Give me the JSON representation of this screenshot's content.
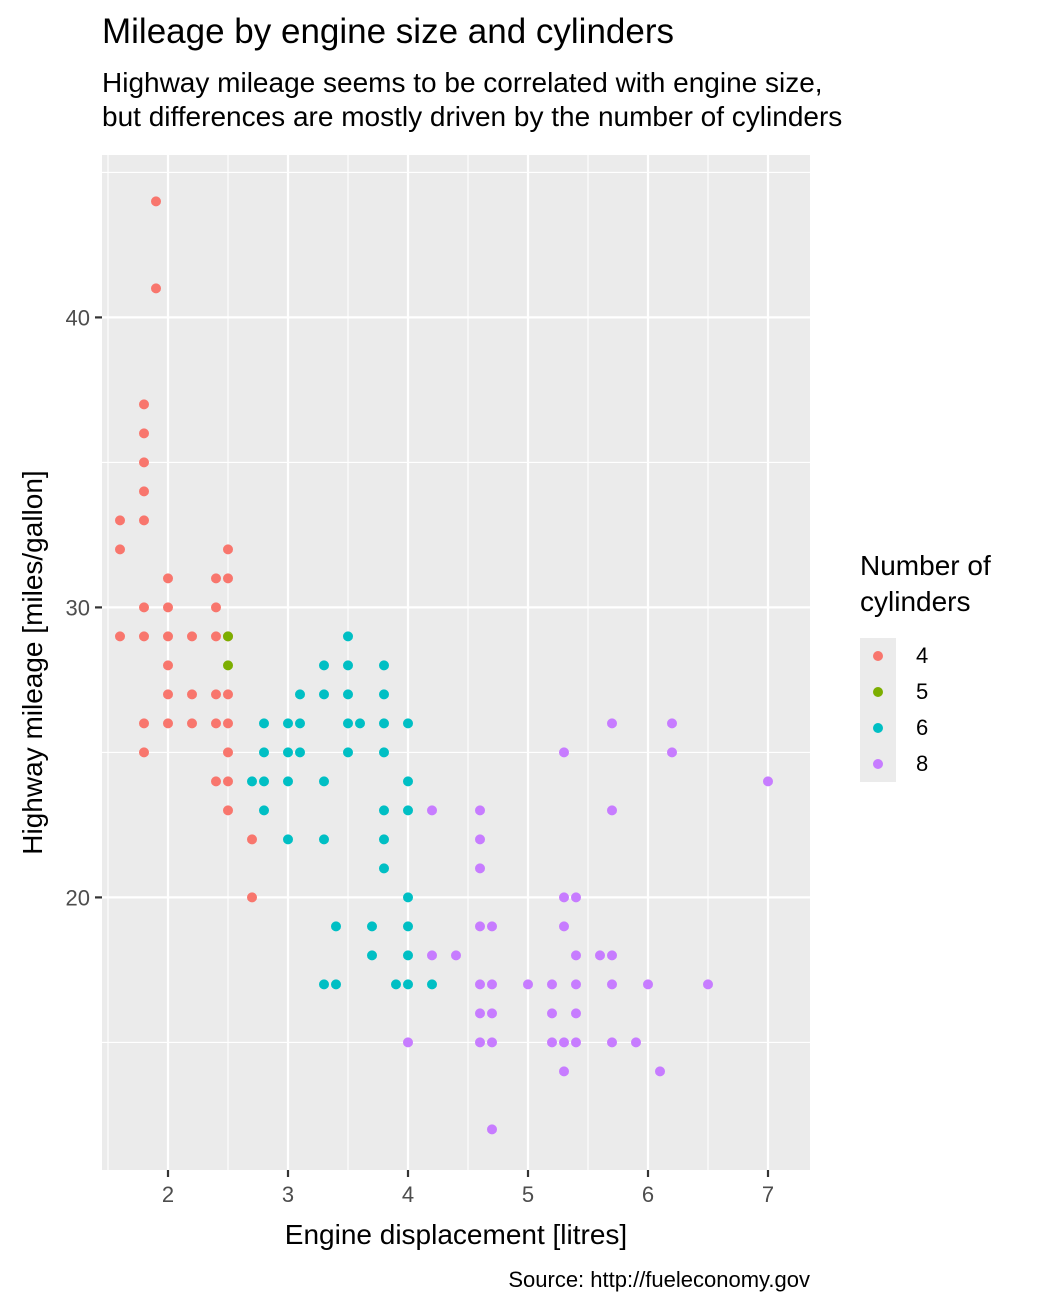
{
  "chart_data": {
    "type": "scatter",
    "title": "Mileage by engine size and cylinders",
    "subtitle": [
      "Highway mileage seems to be correlated with engine size,",
      "but differences are mostly driven by the number of cylinders"
    ],
    "caption": "Source: http://fueleconomy.gov",
    "xlabel": "Engine displacement [litres]",
    "ylabel": "Highway mileage [miles/gallon]",
    "xlim": [
      1.45,
      7.35
    ],
    "ylim": [
      10.6,
      45.6
    ],
    "x_ticks": [
      2,
      3,
      4,
      5,
      6,
      7
    ],
    "y_ticks": [
      20,
      30,
      40
    ],
    "grid": true,
    "legend": {
      "title": [
        "Number of",
        "cylinders"
      ],
      "position": "right"
    },
    "series": [
      {
        "name": "4",
        "color": "#F8766D",
        "points": [
          [
            1.6,
            33
          ],
          [
            1.6,
            32
          ],
          [
            1.6,
            29
          ],
          [
            1.8,
            37
          ],
          [
            1.8,
            36
          ],
          [
            1.8,
            35
          ],
          [
            1.8,
            34
          ],
          [
            1.8,
            33
          ],
          [
            1.8,
            30
          ],
          [
            1.8,
            29
          ],
          [
            1.8,
            26
          ],
          [
            1.8,
            25
          ],
          [
            1.9,
            44
          ],
          [
            1.9,
            41
          ],
          [
            2.0,
            31
          ],
          [
            2.0,
            30
          ],
          [
            2.0,
            29
          ],
          [
            2.0,
            28
          ],
          [
            2.0,
            27
          ],
          [
            2.0,
            26
          ],
          [
            2.2,
            29
          ],
          [
            2.2,
            27
          ],
          [
            2.2,
            26
          ],
          [
            2.4,
            31
          ],
          [
            2.4,
            30
          ],
          [
            2.4,
            29
          ],
          [
            2.4,
            27
          ],
          [
            2.4,
            26
          ],
          [
            2.4,
            24
          ],
          [
            2.5,
            32
          ],
          [
            2.5,
            31
          ],
          [
            2.5,
            29
          ],
          [
            2.5,
            27
          ],
          [
            2.5,
            26
          ],
          [
            2.5,
            25
          ],
          [
            2.5,
            24
          ],
          [
            2.5,
            23
          ],
          [
            2.7,
            22
          ],
          [
            2.7,
            20
          ]
        ]
      },
      {
        "name": "5",
        "color": "#7CAE00",
        "points": [
          [
            2.5,
            29
          ],
          [
            2.5,
            28
          ]
        ]
      },
      {
        "name": "6",
        "color": "#00BFC4",
        "points": [
          [
            2.7,
            24
          ],
          [
            2.8,
            26
          ],
          [
            2.8,
            25
          ],
          [
            2.8,
            24
          ],
          [
            2.8,
            23
          ],
          [
            3.0,
            26
          ],
          [
            3.0,
            25
          ],
          [
            3.0,
            24
          ],
          [
            3.0,
            22
          ],
          [
            3.1,
            27
          ],
          [
            3.1,
            26
          ],
          [
            3.1,
            25
          ],
          [
            3.3,
            28
          ],
          [
            3.3,
            27
          ],
          [
            3.3,
            24
          ],
          [
            3.3,
            22
          ],
          [
            3.3,
            17
          ],
          [
            3.4,
            19
          ],
          [
            3.4,
            17
          ],
          [
            3.5,
            29
          ],
          [
            3.5,
            28
          ],
          [
            3.5,
            27
          ],
          [
            3.5,
            26
          ],
          [
            3.5,
            25
          ],
          [
            3.6,
            26
          ],
          [
            3.7,
            19
          ],
          [
            3.7,
            18
          ],
          [
            3.8,
            28
          ],
          [
            3.8,
            27
          ],
          [
            3.8,
            26
          ],
          [
            3.8,
            25
          ],
          [
            3.8,
            23
          ],
          [
            3.8,
            22
          ],
          [
            3.8,
            21
          ],
          [
            3.9,
            17
          ],
          [
            4.0,
            26
          ],
          [
            4.0,
            24
          ],
          [
            4.0,
            23
          ],
          [
            4.0,
            20
          ],
          [
            4.0,
            19
          ],
          [
            4.0,
            18
          ],
          [
            4.0,
            17
          ],
          [
            4.2,
            17
          ]
        ]
      },
      {
        "name": "8",
        "color": "#C77CFF",
        "points": [
          [
            4.0,
            15
          ],
          [
            4.2,
            23
          ],
          [
            4.2,
            18
          ],
          [
            4.4,
            18
          ],
          [
            4.6,
            23
          ],
          [
            4.6,
            22
          ],
          [
            4.6,
            21
          ],
          [
            4.6,
            19
          ],
          [
            4.6,
            17
          ],
          [
            4.6,
            16
          ],
          [
            4.6,
            15
          ],
          [
            4.7,
            19
          ],
          [
            4.7,
            17
          ],
          [
            4.7,
            16
          ],
          [
            4.7,
            15
          ],
          [
            4.7,
            12
          ],
          [
            5.0,
            17
          ],
          [
            5.2,
            17
          ],
          [
            5.2,
            16
          ],
          [
            5.2,
            15
          ],
          [
            5.3,
            25
          ],
          [
            5.3,
            20
          ],
          [
            5.3,
            19
          ],
          [
            5.3,
            15
          ],
          [
            5.3,
            14
          ],
          [
            5.4,
            20
          ],
          [
            5.4,
            18
          ],
          [
            5.4,
            17
          ],
          [
            5.4,
            16
          ],
          [
            5.4,
            15
          ],
          [
            5.6,
            18
          ],
          [
            5.7,
            26
          ],
          [
            5.7,
            23
          ],
          [
            5.7,
            18
          ],
          [
            5.7,
            17
          ],
          [
            5.7,
            15
          ],
          [
            5.9,
            15
          ],
          [
            6.0,
            17
          ],
          [
            6.1,
            14
          ],
          [
            6.2,
            26
          ],
          [
            6.2,
            25
          ],
          [
            6.5,
            17
          ],
          [
            7.0,
            24
          ]
        ]
      }
    ]
  }
}
